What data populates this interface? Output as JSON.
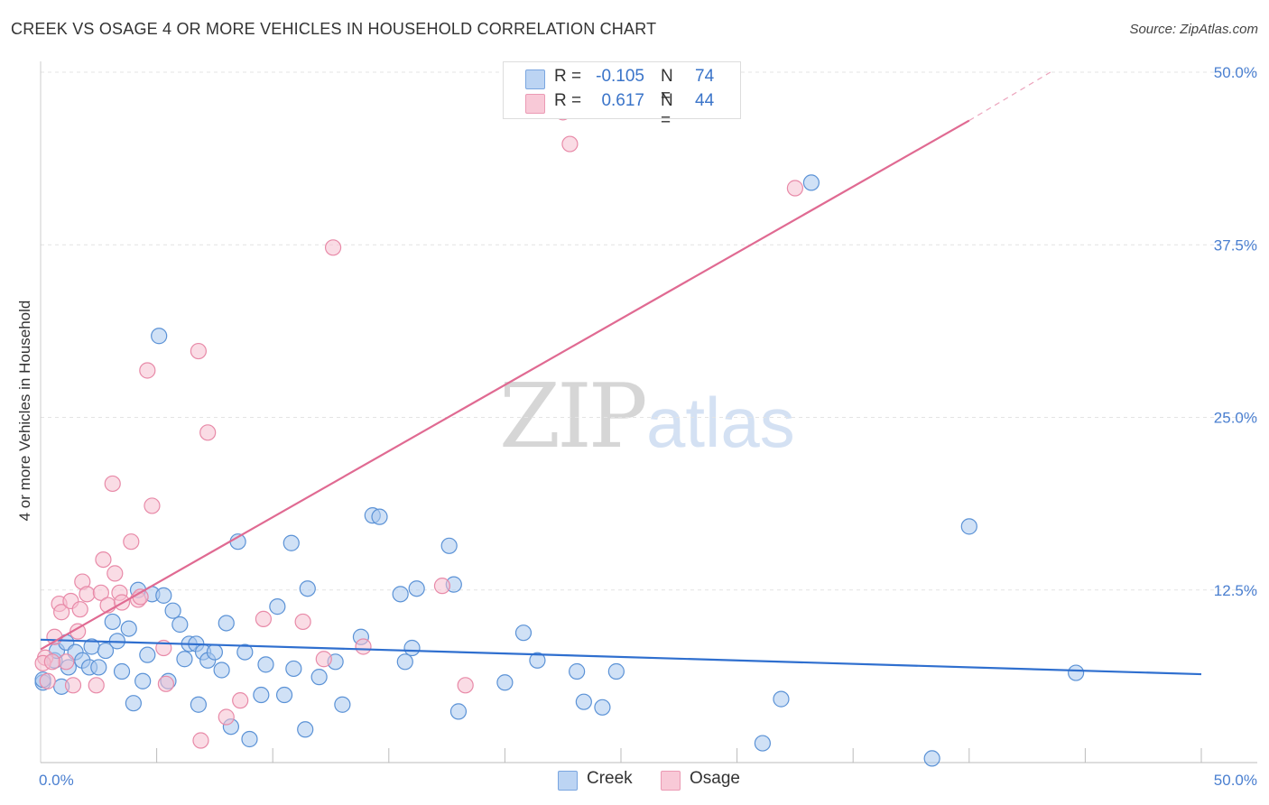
{
  "title": "CREEK VS OSAGE 4 OR MORE VEHICLES IN HOUSEHOLD CORRELATION CHART",
  "source": "Source: ZipAtlas.com",
  "watermark": {
    "part1": "ZIP",
    "part2": "atlas"
  },
  "legend": {
    "rows": [
      {
        "r_label": "R =",
        "r_value": "-0.105",
        "n_label": "N =",
        "n_value": "74"
      },
      {
        "r_label": "R =",
        "r_value": "0.617",
        "n_label": "N =",
        "n_value": "44"
      }
    ]
  },
  "bottom_legend": {
    "creek": "Creek",
    "osage": "Osage"
  },
  "colors": {
    "creek_fill": "#a9c8ef",
    "creek_stroke": "#5b92d6",
    "creek_line": "#2f6fcf",
    "osage_fill": "#f6bfd0",
    "osage_stroke": "#e88aa8",
    "osage_line": "#e06a92",
    "axis_text": "#4a7fd0",
    "grid": "#e4e4e4"
  },
  "chart_data": {
    "type": "scatter",
    "title": "CREEK VS OSAGE 4 OR MORE VEHICLES IN HOUSEHOLD CORRELATION CHART",
    "xlabel": "",
    "ylabel": "4 or more Vehicles in Household",
    "xlim": [
      0,
      50
    ],
    "ylim": [
      0,
      50
    ],
    "x_tick_labels": [
      {
        "value": 0,
        "label": "0.0%"
      },
      {
        "value": 50,
        "label": "50.0%"
      }
    ],
    "y_tick_labels": [
      {
        "value": 12.5,
        "label": "12.5%"
      },
      {
        "value": 25,
        "label": "25.0%"
      },
      {
        "value": 37.5,
        "label": "37.5%"
      },
      {
        "value": 50,
        "label": "50.0%"
      }
    ],
    "series": [
      {
        "name": "Creek",
        "r": -0.105,
        "n": 74,
        "trend": {
          "x": [
            0,
            50
          ],
          "y": [
            8.9,
            6.4
          ]
        },
        "points": [
          [
            0.1,
            5.8
          ],
          [
            0.6,
            7.4
          ],
          [
            0.7,
            8.1
          ],
          [
            0.9,
            5.5
          ],
          [
            1.1,
            8.7
          ],
          [
            1.2,
            6.9
          ],
          [
            1.5,
            8.0
          ],
          [
            1.8,
            7.4
          ],
          [
            2.1,
            6.9
          ],
          [
            2.2,
            8.4
          ],
          [
            2.5,
            6.9
          ],
          [
            2.8,
            8.1
          ],
          [
            3.1,
            10.2
          ],
          [
            3.3,
            8.8
          ],
          [
            3.5,
            6.6
          ],
          [
            3.8,
            9.7
          ],
          [
            4.0,
            4.3
          ],
          [
            4.2,
            12.5
          ],
          [
            4.4,
            5.9
          ],
          [
            4.6,
            7.8
          ],
          [
            4.8,
            12.2
          ],
          [
            5.1,
            30.9
          ],
          [
            5.3,
            12.1
          ],
          [
            5.5,
            5.9
          ],
          [
            5.7,
            11.0
          ],
          [
            6.0,
            10.0
          ],
          [
            6.2,
            7.5
          ],
          [
            6.4,
            8.6
          ],
          [
            6.7,
            8.6
          ],
          [
            6.8,
            4.2
          ],
          [
            7.0,
            8.0
          ],
          [
            7.2,
            7.4
          ],
          [
            7.5,
            8.0
          ],
          [
            7.8,
            6.7
          ],
          [
            8.0,
            10.1
          ],
          [
            8.2,
            2.6
          ],
          [
            8.5,
            16.0
          ],
          [
            8.8,
            8.0
          ],
          [
            9.0,
            1.7
          ],
          [
            9.5,
            4.9
          ],
          [
            9.7,
            7.1
          ],
          [
            10.2,
            11.3
          ],
          [
            10.5,
            4.9
          ],
          [
            10.8,
            15.9
          ],
          [
            10.9,
            6.8
          ],
          [
            11.4,
            2.4
          ],
          [
            11.5,
            12.6
          ],
          [
            12.0,
            6.2
          ],
          [
            12.7,
            7.3
          ],
          [
            13.0,
            4.2
          ],
          [
            13.8,
            9.1
          ],
          [
            14.3,
            17.9
          ],
          [
            14.6,
            17.8
          ],
          [
            15.5,
            12.2
          ],
          [
            15.7,
            7.3
          ],
          [
            16.0,
            8.3
          ],
          [
            16.2,
            12.6
          ],
          [
            17.6,
            15.7
          ],
          [
            17.8,
            12.9
          ],
          [
            18.0,
            3.7
          ],
          [
            20.0,
            5.8
          ],
          [
            20.8,
            9.4
          ],
          [
            21.4,
            7.4
          ],
          [
            23.1,
            6.6
          ],
          [
            23.4,
            4.4
          ],
          [
            24.2,
            4.0
          ],
          [
            24.8,
            6.6
          ],
          [
            31.1,
            1.4
          ],
          [
            31.9,
            4.6
          ],
          [
            33.2,
            42.0
          ],
          [
            38.4,
            0.3
          ],
          [
            40.0,
            17.1
          ],
          [
            44.6,
            6.5
          ],
          [
            0.1,
            6.0
          ]
        ]
      },
      {
        "name": "Osage",
        "r": 0.617,
        "n": 44,
        "trend": {
          "x": [
            0,
            40
          ],
          "y": [
            8.2,
            46.5
          ]
        },
        "trend_dashed": {
          "x": [
            40,
            43.5
          ],
          "y": [
            46.5,
            50
          ]
        },
        "points": [
          [
            0.2,
            7.6
          ],
          [
            0.6,
            9.1
          ],
          [
            0.8,
            11.5
          ],
          [
            0.9,
            10.9
          ],
          [
            1.1,
            7.3
          ],
          [
            1.3,
            11.7
          ],
          [
            1.4,
            5.6
          ],
          [
            1.6,
            9.5
          ],
          [
            1.7,
            11.1
          ],
          [
            1.8,
            13.1
          ],
          [
            2.0,
            12.2
          ],
          [
            2.4,
            5.6
          ],
          [
            2.6,
            12.3
          ],
          [
            2.7,
            14.7
          ],
          [
            2.9,
            11.4
          ],
          [
            3.1,
            20.2
          ],
          [
            3.2,
            13.7
          ],
          [
            3.4,
            12.3
          ],
          [
            3.5,
            11.6
          ],
          [
            3.9,
            16.0
          ],
          [
            4.2,
            11.8
          ],
          [
            4.3,
            12.0
          ],
          [
            4.6,
            28.4
          ],
          [
            4.8,
            18.6
          ],
          [
            5.3,
            8.3
          ],
          [
            5.4,
            5.7
          ],
          [
            6.8,
            29.8
          ],
          [
            6.9,
            1.6
          ],
          [
            7.2,
            23.9
          ],
          [
            8.0,
            3.3
          ],
          [
            8.6,
            4.5
          ],
          [
            9.6,
            10.4
          ],
          [
            11.3,
            10.2
          ],
          [
            12.2,
            7.5
          ],
          [
            12.6,
            37.3
          ],
          [
            13.9,
            8.4
          ],
          [
            17.3,
            12.8
          ],
          [
            18.3,
            5.6
          ],
          [
            22.5,
            47.1
          ],
          [
            22.8,
            44.8
          ],
          [
            32.5,
            41.6
          ],
          [
            0.1,
            7.2
          ],
          [
            0.3,
            5.9
          ],
          [
            0.5,
            7.3
          ]
        ]
      }
    ]
  }
}
